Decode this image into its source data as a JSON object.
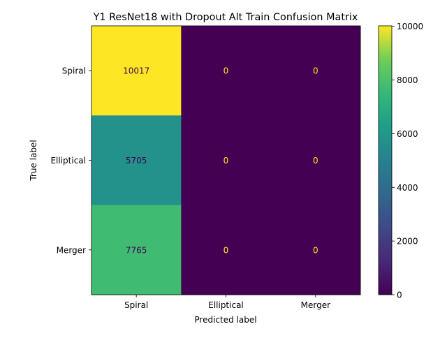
{
  "chart_data": {
    "type": "heatmap",
    "title": "Y1 ResNet18 with Dropout Alt Train Confusion Matrix",
    "xlabel": "Predicted label",
    "ylabel": "True label",
    "x_categories": [
      "Spiral",
      "Elliptical",
      "Merger"
    ],
    "y_categories": [
      "Spiral",
      "Elliptical",
      "Merger"
    ],
    "matrix": [
      [
        10017,
        0,
        0
      ],
      [
        5705,
        0,
        0
      ],
      [
        7765,
        0,
        0
      ]
    ],
    "colormap": "viridis",
    "colorbar": {
      "range": [
        0,
        10017
      ],
      "ticks": [
        0,
        2000,
        4000,
        6000,
        8000,
        10000
      ]
    }
  }
}
